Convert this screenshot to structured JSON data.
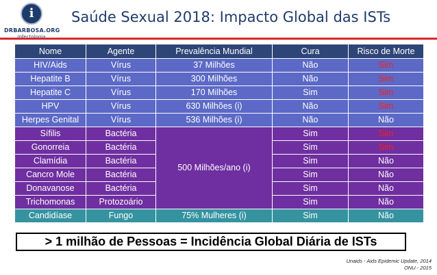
{
  "logo": {
    "glyph": "i",
    "name": "DRBARBOSA.ORG",
    "subtitle": "infectologia"
  },
  "title": "Saúde Sexual 2018: Impacto Global das ISTs",
  "table": {
    "headers": [
      "Nome",
      "Agente",
      "Prevalência Mundial",
      "Cura",
      "Risco de Morte"
    ],
    "viral_rows": [
      {
        "name": "HIV/Aids",
        "agent": "Vírus",
        "prevalence": "37 Milhões",
        "cure": "Não",
        "risk": "Sim",
        "risk_red": true
      },
      {
        "name": "Hepatite B",
        "agent": "Vírus",
        "prevalence": "300 Milhões",
        "cure": "Não",
        "risk": "Sim",
        "risk_red": true
      },
      {
        "name": "Hepatite C",
        "agent": "Vírus",
        "prevalence": "170 Milhões",
        "cure": "Sim",
        "risk": "Sim",
        "risk_red": true
      },
      {
        "name": "HPV",
        "agent": "Vírus",
        "prevalence": "630 Milhões (i)",
        "cure": "Não",
        "risk": "Sim",
        "risk_red": true
      },
      {
        "name": "Herpes Genital",
        "agent": "Vírus",
        "prevalence": "536 Milhões (i)",
        "cure": "Não",
        "risk": "Não",
        "risk_red": false
      }
    ],
    "bacterial_prevalence": "500 Milhões/ano (i)",
    "bacterial_rows": [
      {
        "name": "Sífilis",
        "agent": "Bactéria",
        "cure": "Sim",
        "risk": "Sim",
        "risk_red": true
      },
      {
        "name": "Gonorreia",
        "agent": "Bactéria",
        "cure": "Sim",
        "risk": "Sim",
        "risk_red": true
      },
      {
        "name": "Clamídia",
        "agent": "Bactéria",
        "cure": "Sim",
        "risk": "Não",
        "risk_red": false
      },
      {
        "name": "Cancro Mole",
        "agent": "Bactéria",
        "cure": "Sim",
        "risk": "Não",
        "risk_red": false
      },
      {
        "name": "Donavanose",
        "agent": "Bactéria",
        "cure": "Sim",
        "risk": "Não",
        "risk_red": false
      },
      {
        "name": "Trichomonas",
        "agent": "Protozoário",
        "cure": "Sim",
        "risk": "Não",
        "risk_red": false
      }
    ],
    "candida_row": {
      "name": "Candidíase",
      "agent": "Fungo",
      "prevalence": "75%  Mulheres (i)",
      "cure": "Sim",
      "risk": "Não"
    }
  },
  "banner": "> 1 milhão de Pessoas = Incidência Global Diária de ISTs",
  "sources": [
    "Unaids - Aids Epidemic Update, 2014",
    "ONU - 2015"
  ],
  "colors": {
    "header": "#2e4577",
    "viral": "#5c69c6",
    "bacterial": "#6f2fa0",
    "candida": "#3593a0",
    "risk_red": "#ff1a1a",
    "title_rule": "#d8262c"
  }
}
